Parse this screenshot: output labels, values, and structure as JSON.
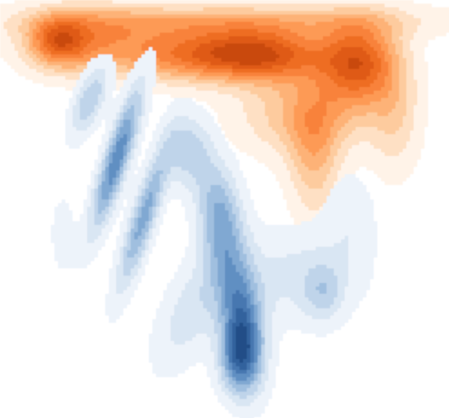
{
  "chart_data": {
    "type": "kde-density-contour",
    "title": "",
    "xlabel": "",
    "ylabel": "",
    "axes_visible": false,
    "grid": false,
    "legend": "none",
    "levels": 9,
    "series": [
      {
        "name": "orange",
        "palette": [
          "#fff3e8",
          "#fee0c4",
          "#fdcb9e",
          "#fdb277",
          "#fd9a54",
          "#f8823a",
          "#ee6d23",
          "#df5a12",
          "#c94a08"
        ],
        "components": [
          {
            "cx": 0.13,
            "cy": 0.1,
            "sx": 0.045,
            "sy": 0.04,
            "rho": 0.0,
            "weight": 0.7
          },
          {
            "cx": 0.2,
            "cy": 0.1,
            "sx": 0.1,
            "sy": 0.055,
            "rho": 0.0,
            "weight": 0.55
          },
          {
            "cx": 0.44,
            "cy": 0.13,
            "sx": 0.12,
            "sy": 0.045,
            "rho": 0.0,
            "weight": 0.8
          },
          {
            "cx": 0.6,
            "cy": 0.13,
            "sx": 0.1,
            "sy": 0.045,
            "rho": 0.0,
            "weight": 0.85
          },
          {
            "cx": 0.8,
            "cy": 0.15,
            "sx": 0.06,
            "sy": 0.07,
            "rho": 0.0,
            "weight": 1.0
          },
          {
            "cx": 0.7,
            "cy": 0.38,
            "sx": 0.04,
            "sy": 0.1,
            "rho": 0.0,
            "weight": 0.45
          },
          {
            "cx": 0.68,
            "cy": 0.27,
            "sx": 0.1,
            "sy": 0.07,
            "rho": 0.0,
            "weight": 0.5
          },
          {
            "cx": 0.5,
            "cy": 0.05,
            "sx": 0.32,
            "sy": 0.03,
            "rho": 0.0,
            "weight": 0.45
          },
          {
            "cx": 0.88,
            "cy": 0.28,
            "sx": 0.04,
            "sy": 0.1,
            "rho": 0.0,
            "weight": 0.3
          }
        ]
      },
      {
        "name": "blue",
        "palette": [
          "#edf3fa",
          "#d9e6f3",
          "#bfd4ea",
          "#a0bfdf",
          "#80a8d2",
          "#618fc2",
          "#4677b0",
          "#33629d",
          "#234d87"
        ],
        "components": [
          {
            "cx": 0.26,
            "cy": 0.38,
            "sx": 0.04,
            "sy": 0.12,
            "rho": -0.85,
            "weight": 1.0
          },
          {
            "cx": 0.32,
            "cy": 0.52,
            "sx": 0.04,
            "sy": 0.12,
            "rho": -0.85,
            "weight": 0.8
          },
          {
            "cx": 0.2,
            "cy": 0.24,
            "sx": 0.03,
            "sy": 0.06,
            "rho": -0.6,
            "weight": 0.55
          },
          {
            "cx": 0.42,
            "cy": 0.36,
            "sx": 0.035,
            "sy": 0.06,
            "rho": 0.0,
            "weight": 0.5
          },
          {
            "cx": 0.49,
            "cy": 0.52,
            "sx": 0.035,
            "sy": 0.09,
            "rho": 0.2,
            "weight": 0.75
          },
          {
            "cx": 0.54,
            "cy": 0.77,
            "sx": 0.035,
            "sy": 0.1,
            "rho": 0.3,
            "weight": 1.0
          },
          {
            "cx": 0.53,
            "cy": 0.86,
            "sx": 0.03,
            "sy": 0.06,
            "rho": 0.0,
            "weight": 0.8
          },
          {
            "cx": 0.43,
            "cy": 0.74,
            "sx": 0.06,
            "sy": 0.1,
            "rho": -0.6,
            "weight": 0.35
          },
          {
            "cx": 0.66,
            "cy": 0.66,
            "sx": 0.1,
            "sy": 0.08,
            "rho": 0.0,
            "weight": 0.3
          },
          {
            "cx": 0.72,
            "cy": 0.7,
            "sx": 0.03,
            "sy": 0.05,
            "rho": 0.0,
            "weight": 0.35
          },
          {
            "cx": 0.14,
            "cy": 0.56,
            "sx": 0.018,
            "sy": 0.06,
            "rho": 0.0,
            "weight": 0.22
          },
          {
            "cx": 0.78,
            "cy": 0.52,
            "sx": 0.04,
            "sy": 0.08,
            "rho": 0.0,
            "weight": 0.2
          }
        ]
      }
    ]
  }
}
